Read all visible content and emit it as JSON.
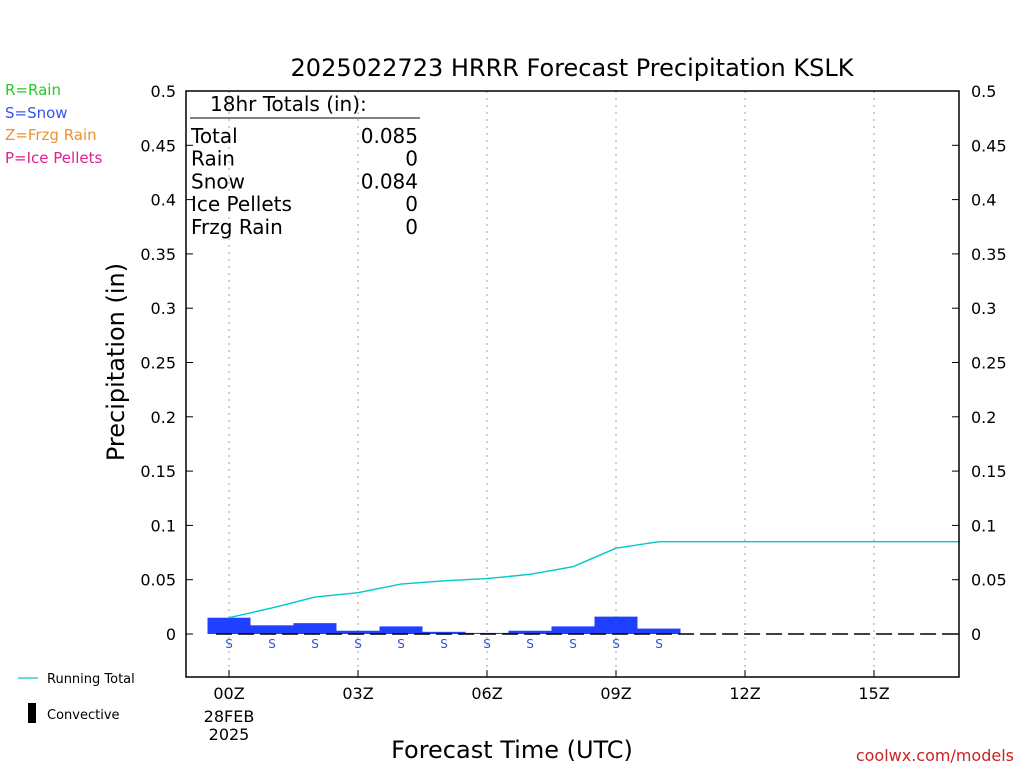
{
  "chart_data": {
    "type": "bar",
    "title": "2025022723 HRRR Forecast Precipitation KSLK",
    "xlabel": "Forecast Time (UTC)",
    "ylabel": "Precipitation (in)",
    "ylim": [
      -0.04,
      0.5
    ],
    "xlim": [
      -1,
      17
    ],
    "y_ticks": [
      "0",
      "0.05",
      "0.1",
      "0.15",
      "0.2",
      "0.25",
      "0.3",
      "0.35",
      "0.4",
      "0.45",
      "0.5"
    ],
    "x_ticks": [
      {
        "hour": 0,
        "label": "00Z"
      },
      {
        "hour": 3,
        "label": "03Z"
      },
      {
        "hour": 6,
        "label": "06Z"
      },
      {
        "hour": 9,
        "label": "09Z"
      },
      {
        "hour": 12,
        "label": "12Z"
      },
      {
        "hour": 15,
        "label": "15Z"
      }
    ],
    "date_label_line1": "28FEB",
    "date_label_line2": "2025",
    "hourly_precip": {
      "hours": [
        0,
        1,
        2,
        3,
        4,
        5,
        6,
        7,
        8,
        9,
        10,
        11,
        12,
        13,
        14,
        15,
        16
      ],
      "values": [
        0.015,
        0.008,
        0.01,
        0.003,
        0.007,
        0.002,
        0.001,
        0.003,
        0.007,
        0.016,
        0.005,
        0,
        0,
        0,
        0,
        0,
        0
      ],
      "color": "#2040ff"
    },
    "running_total": {
      "name": "Running Total",
      "hours": [
        0,
        1,
        2,
        3,
        4,
        5,
        6,
        7,
        8,
        9,
        10,
        11,
        12,
        13,
        14,
        15,
        16,
        17
      ],
      "values": [
        0.015,
        0.024,
        0.034,
        0.038,
        0.046,
        0.049,
        0.051,
        0.055,
        0.062,
        0.079,
        0.085,
        0.085,
        0.085,
        0.085,
        0.085,
        0.085,
        0.085,
        0.085
      ],
      "color": "#00c8c8"
    },
    "precip_type_markers": {
      "hours": [
        0,
        1,
        2,
        3,
        4,
        5,
        6,
        7,
        8,
        9,
        10
      ],
      "symbol": "S",
      "color": "#3050e0"
    },
    "grid": "vertical-dotted",
    "legend_placement": "bottom-left"
  },
  "totals_box": {
    "heading": "18hr Totals (in):",
    "rows": [
      {
        "label": "Total",
        "value": "0.085"
      },
      {
        "label": "Rain",
        "value": "0"
      },
      {
        "label": "Snow",
        "value": "0.084"
      },
      {
        "label": "Ice Pellets",
        "value": "0"
      },
      {
        "label": "Frzg Rain",
        "value": "0"
      }
    ]
  },
  "type_key": [
    {
      "text": "R=Rain",
      "color": "#22cc22"
    },
    {
      "text": "S=Snow",
      "color": "#3355ee"
    },
    {
      "text": "Z=Frzg Rain",
      "color": "#f09030"
    },
    {
      "text": "P=Ice Pellets",
      "color": "#e0208c"
    }
  ],
  "legend": {
    "running_total_label": "Running Total",
    "convective_label": "Convective"
  },
  "credit": "coolwx.com/models"
}
